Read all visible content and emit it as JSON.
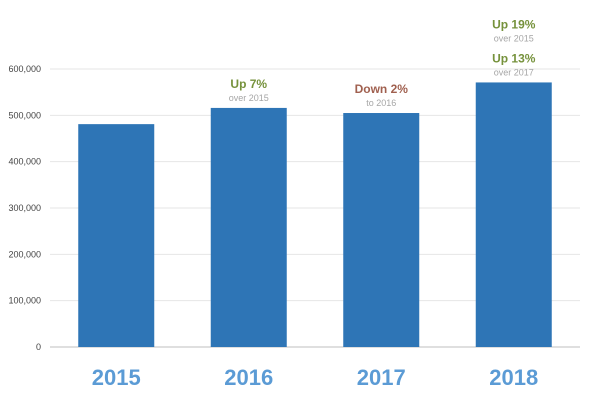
{
  "chart_data": {
    "type": "bar",
    "categories": [
      "2015",
      "2016",
      "2017",
      "2018"
    ],
    "values": [
      481000,
      516000,
      505000,
      571000
    ],
    "ylim": [
      0,
      600000
    ],
    "yticks": [
      0,
      100000,
      200000,
      300000,
      400000,
      500000,
      600000
    ],
    "ytick_labels": [
      "0",
      "100,000",
      "200,000",
      "300,000",
      "400,000",
      "500,000",
      "600,000"
    ],
    "grid": true,
    "legend": "none",
    "annotations": [
      {
        "category": "2016",
        "lines": [
          {
            "title": "Up 7%",
            "sub": "over 2015",
            "color": "#76923c"
          }
        ]
      },
      {
        "category": "2017",
        "lines": [
          {
            "title": "Down 2%",
            "sub": "to 2016",
            "color": "#a0604f"
          }
        ]
      },
      {
        "category": "2018",
        "lines": [
          {
            "title": "Up 19%",
            "sub": "over 2015",
            "color": "#76923c"
          },
          {
            "title": "Up 13%",
            "sub": "over 2017",
            "color": "#76923c"
          }
        ]
      }
    ],
    "colors": {
      "bar": "#2e75b6",
      "category_label": "#5b9bd5",
      "grid": "#e6e6e6",
      "axis": "#bfbfbf"
    }
  }
}
